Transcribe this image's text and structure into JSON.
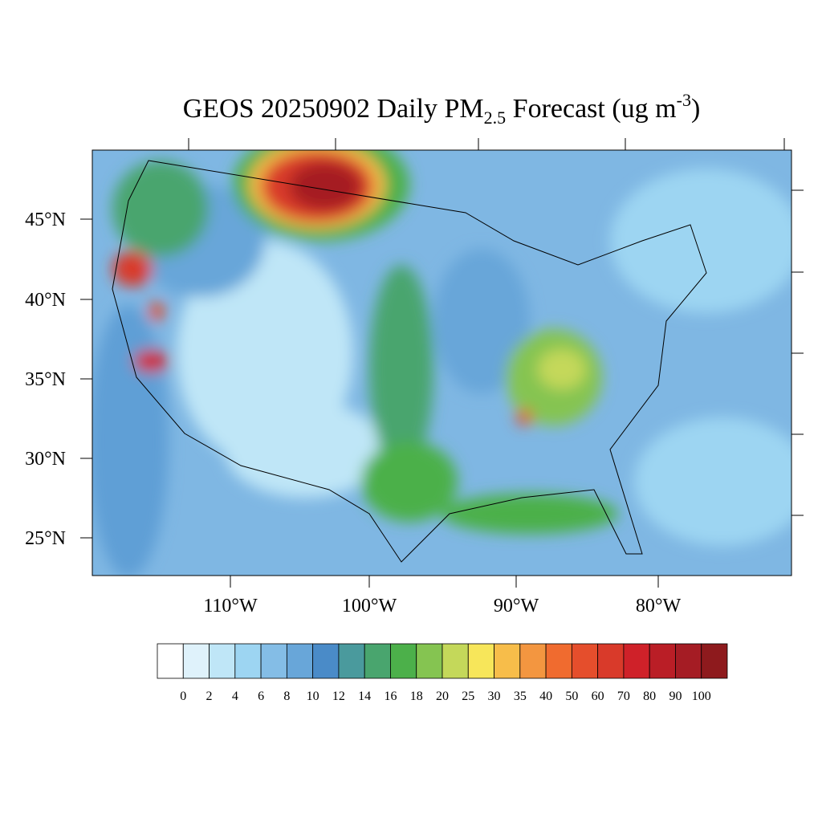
{
  "title": {
    "main": "GEOS 20250902 Daily PM",
    "subscript": "2.5",
    "middle": " Forecast (ug m",
    "superscript": "-3",
    "end": ")"
  },
  "lat_labels": [
    "45°N",
    "40°N",
    "35°N",
    "30°N",
    "25°N"
  ],
  "lon_labels": [
    "110°W",
    "100°W",
    "90°W",
    "80°W"
  ],
  "colorbar": {
    "levels": [
      0,
      2,
      4,
      6,
      8,
      10,
      12,
      14,
      16,
      18,
      20,
      25,
      30,
      35,
      40,
      50,
      60,
      70,
      80,
      90,
      100
    ],
    "colors": [
      "#ffffff",
      "#dff2fb",
      "#bfe6f7",
      "#9dd5f2",
      "#84bde6",
      "#68a6d9",
      "#4a8bc8",
      "#4a9a9d",
      "#49a56e",
      "#4cb04a",
      "#85c451",
      "#c4d85a",
      "#f7e65a",
      "#f7bd4a",
      "#f39640",
      "#f06b2f",
      "#e54e2c",
      "#d93a2a",
      "#cf2129",
      "#ba1e26",
      "#a51c24",
      "#8e1a1d"
    ]
  }
}
